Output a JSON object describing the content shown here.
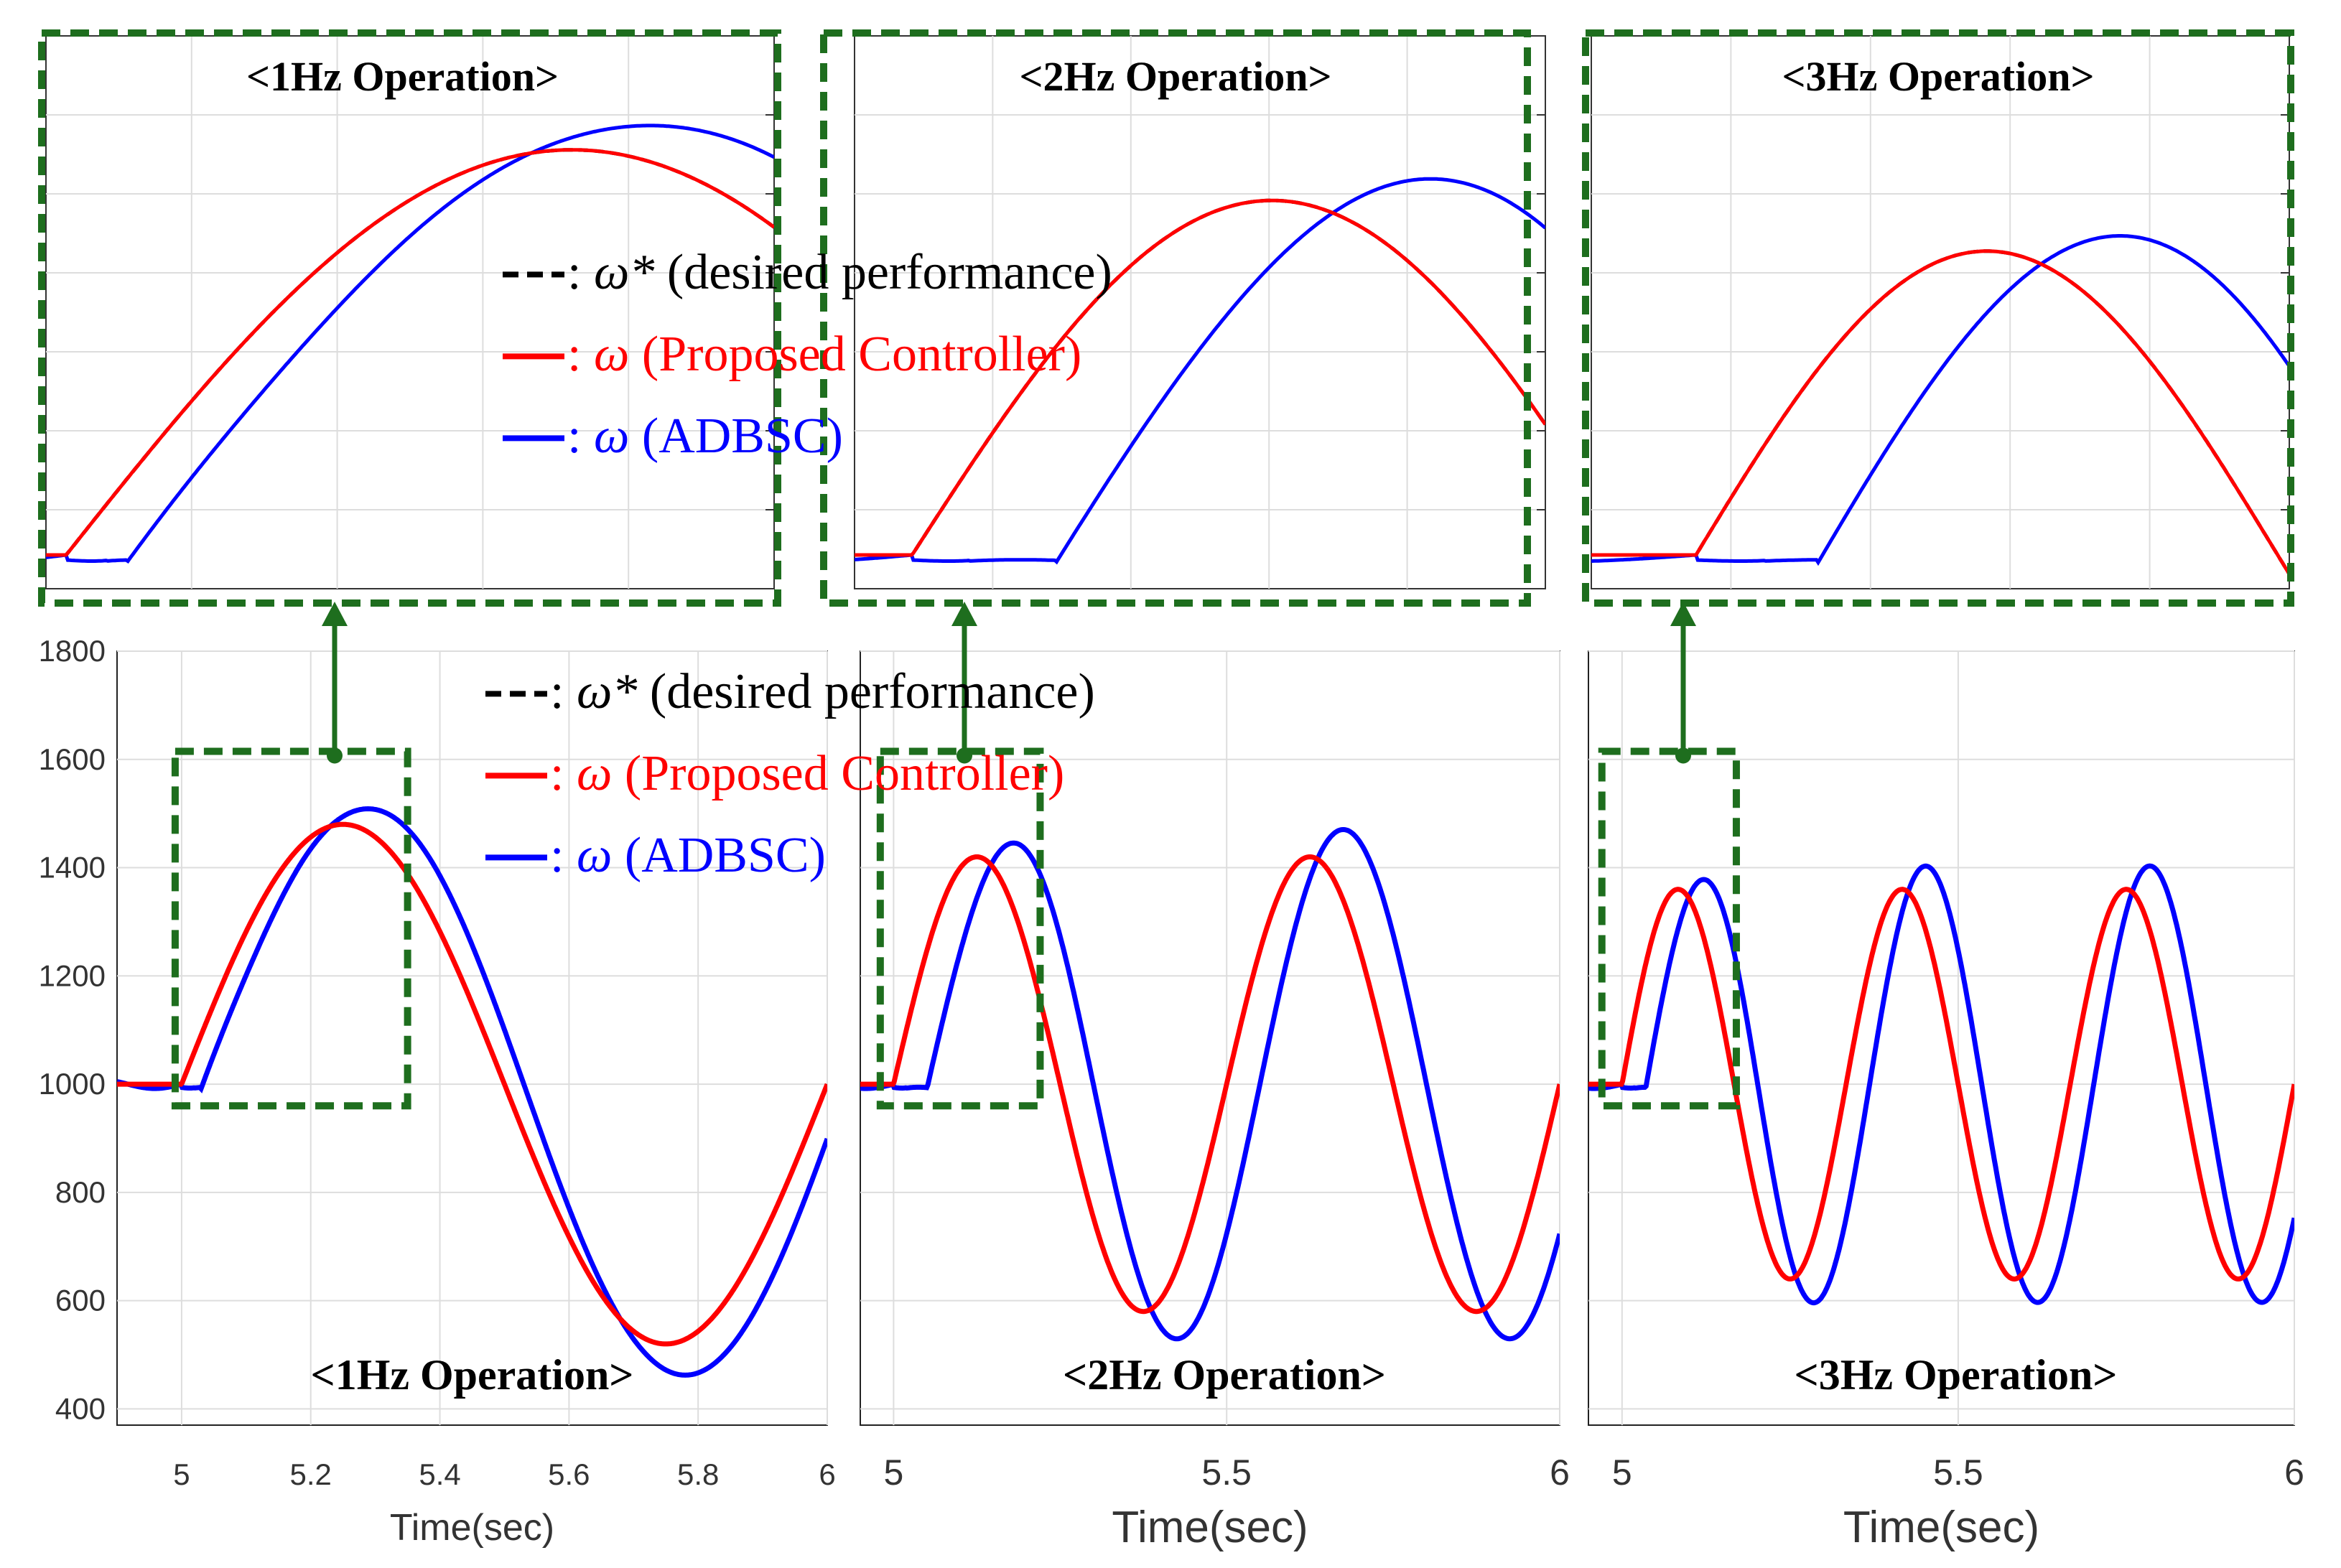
{
  "figure": {
    "x_axis_label": "Time(sec)",
    "colors": {
      "desired": "#000000",
      "proposed": "#ff0000",
      "adbsc": "#0000ff",
      "zoom_box": "#1e6e1e",
      "grid": "#dddddd"
    },
    "legend": [
      {
        "symbol": "ω*",
        "sep": ":",
        "text": "(desired performance)",
        "color": "#000000",
        "style": "dashed"
      },
      {
        "symbol": "ω",
        "sep": ":",
        "text": "(Proposed Controller)",
        "color": "#ff0000",
        "style": "solid"
      },
      {
        "symbol": "ω",
        "sep": ":",
        "text": "(ADBSC)",
        "color": "#0000ff",
        "style": "solid"
      }
    ]
  },
  "chart_data": [
    {
      "type": "line",
      "title": "<1Hz Operation>",
      "frequency_hz": 1,
      "xlabel": "Time(sec)",
      "ylabel": "",
      "xlim": [
        4.9,
        6.0
      ],
      "ylim": [
        370,
        1800
      ],
      "xticks": [
        5,
        5.2,
        5.4,
        5.6,
        5.8,
        6
      ],
      "xtick_labels": [
        "5",
        "5.2",
        "5.4",
        "5.6",
        "5.8",
        "6"
      ],
      "yticks": [
        400,
        600,
        800,
        1000,
        1200,
        1400,
        1600,
        1800
      ],
      "ytick_labels": [
        "400",
        "600",
        "800",
        "1000",
        "1200",
        "1400",
        "1600",
        "1800"
      ],
      "step_time": 5.0,
      "baseline": 1000,
      "sine": {
        "offset": 1000,
        "amplitude": 480,
        "start": 5.0
      },
      "series": [
        {
          "name": "ω* (desired performance)",
          "model": "desired"
        },
        {
          "name": "ω (Proposed Controller)",
          "model": "proposed",
          "delay": 0.0
        },
        {
          "name": "ω (ADBSC)",
          "model": "adbsc",
          "delay": 0.03,
          "peak_boost": 1.12,
          "pre_ripple": 20
        }
      ],
      "observed_points": {
        "desired_peak": [
          5.3,
          1480
        ],
        "desired_trough": [
          5.8,
          530
        ],
        "adbsc_peak": [
          5.32,
          1550
        ],
        "adbsc_trough": [
          5.78,
          475
        ]
      },
      "zoom_window": {
        "x": [
          4.99,
          5.35
        ],
        "y": [
          960,
          1615
        ]
      },
      "inset_title": "<1Hz Operation>"
    },
    {
      "type": "line",
      "title": "<2Hz Operation>",
      "frequency_hz": 2,
      "xlabel": "Time(sec)",
      "ylabel": "",
      "xlim": [
        4.95,
        6.0
      ],
      "ylim": [
        370,
        1800
      ],
      "xticks": [
        5,
        5.5,
        6
      ],
      "xtick_labels": [
        "5",
        "5.5",
        "6"
      ],
      "step_time": 5.0,
      "baseline": 1000,
      "sine": {
        "offset": 1000,
        "amplitude": 420,
        "start": 5.0
      },
      "series": [
        {
          "name": "ω* (desired performance)",
          "model": "desired"
        },
        {
          "name": "ω (Proposed Controller)",
          "model": "proposed",
          "delay": 0.0
        },
        {
          "name": "ω (ADBSC)",
          "model": "adbsc",
          "delay": 0.05,
          "peak_boost": 1.12,
          "pre_ripple": 20
        }
      ],
      "observed_points": {
        "proposed_peaks": [
          1425,
          1420
        ],
        "proposed_troughs": [
          585,
          585
        ],
        "adbsc_peaks": [
          1465,
          1530
        ],
        "adbsc_troughs": [
          495,
          470
        ]
      },
      "zoom_window": {
        "x": [
          4.98,
          5.22
        ],
        "y": [
          960,
          1615
        ]
      },
      "inset_title": "<2Hz Operation>"
    },
    {
      "type": "line",
      "title": "<3Hz Operation>",
      "frequency_hz": 3,
      "xlabel": "Time(sec)",
      "ylabel": "",
      "xlim": [
        4.95,
        6.0
      ],
      "ylim": [
        370,
        1800
      ],
      "xticks": [
        5,
        5.5,
        6
      ],
      "xtick_labels": [
        "5",
        "5.5",
        "6"
      ],
      "step_time": 5.0,
      "baseline": 1000,
      "sine": {
        "offset": 1000,
        "amplitude": 360,
        "start": 5.0
      },
      "series": [
        {
          "name": "ω* (desired performance)",
          "model": "desired"
        },
        {
          "name": "ω (Proposed Controller)",
          "model": "proposed",
          "delay": 0.0
        },
        {
          "name": "ω (ADBSC)",
          "model": "adbsc",
          "delay": 0.035,
          "peak_boost": 1.12,
          "pre_ripple": 20
        }
      ],
      "observed_points": {
        "proposed_peaks": [
          1380,
          1350,
          1350
        ],
        "proposed_troughs": [
          650,
          645,
          645
        ],
        "adbsc_peaks": [
          1390,
          1400,
          1410
        ],
        "adbsc_troughs": [
          605,
          600,
          595
        ]
      },
      "zoom_window": {
        "x": [
          4.97,
          5.17
        ],
        "y": [
          960,
          1615
        ]
      },
      "inset_title": "<3Hz Operation>"
    }
  ]
}
